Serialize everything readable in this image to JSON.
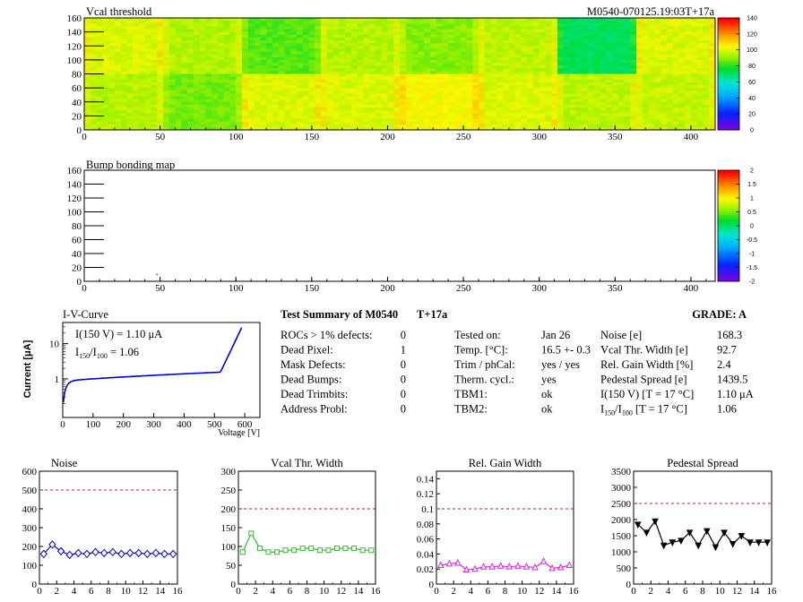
{
  "header": {
    "vcal_title": "Vcal threshold",
    "module_id": "M0540-070125.19:03T+17a",
    "bump_title": "Bump bonding map"
  },
  "vcal_map": {
    "x_range": [
      0,
      416
    ],
    "y_range": [
      0,
      160
    ],
    "x_ticks": [
      "0",
      "50",
      "100",
      "150",
      "200",
      "250",
      "300",
      "350",
      "400"
    ],
    "y_ticks": [
      "0",
      "20",
      "40",
      "60",
      "80",
      "100",
      "120",
      "140",
      "160"
    ],
    "z_range": [
      0,
      140
    ],
    "z_ticks": [
      "0",
      "20",
      "40",
      "60",
      "80",
      "100",
      "120",
      "140"
    ],
    "roc_blocks": [
      {
        "row": "top",
        "x0": 0,
        "x1": 52,
        "value": 100
      },
      {
        "row": "top",
        "x0": 52,
        "x1": 104,
        "value": 95
      },
      {
        "row": "top",
        "x0": 104,
        "x1": 156,
        "value": 85
      },
      {
        "row": "top",
        "x0": 156,
        "x1": 208,
        "value": 95
      },
      {
        "row": "top",
        "x0": 208,
        "x1": 260,
        "value": 90
      },
      {
        "row": "top",
        "x0": 260,
        "x1": 312,
        "value": 96
      },
      {
        "row": "top",
        "x0": 312,
        "x1": 364,
        "value": 72
      },
      {
        "row": "top",
        "x0": 364,
        "x1": 416,
        "value": 100
      },
      {
        "row": "bottom",
        "x0": 0,
        "x1": 52,
        "value": 95
      },
      {
        "row": "bottom",
        "x0": 52,
        "x1": 104,
        "value": 88
      },
      {
        "row": "bottom",
        "x0": 104,
        "x1": 156,
        "value": 100
      },
      {
        "row": "bottom",
        "x0": 156,
        "x1": 208,
        "value": 100
      },
      {
        "row": "bottom",
        "x0": 208,
        "x1": 260,
        "value": 104
      },
      {
        "row": "bottom",
        "x0": 260,
        "x1": 312,
        "value": 100
      },
      {
        "row": "bottom",
        "x0": 312,
        "x1": 364,
        "value": 96
      },
      {
        "row": "bottom",
        "x0": 364,
        "x1": 416,
        "value": 97
      }
    ]
  },
  "bump_map": {
    "x_range": [
      0,
      416
    ],
    "y_range": [
      0,
      160
    ],
    "x_ticks": [
      "0",
      "50",
      "100",
      "150",
      "200",
      "250",
      "300",
      "350",
      "400"
    ],
    "y_ticks": [
      "0",
      "20",
      "40",
      "60",
      "80",
      "100",
      "120",
      "140",
      "160"
    ],
    "z_range": [
      -2,
      2
    ],
    "z_ticks": [
      "-2",
      "-1.5",
      "-1",
      "-0.5",
      "0",
      "0.5",
      "1",
      "1.5",
      "2"
    ],
    "defect_pixels": [
      {
        "x": 48,
        "y": 10
      }
    ]
  },
  "iv": {
    "title": "I-V-Curve",
    "ylabel": "Current [μA]",
    "xlabel": "Voltage [V]",
    "x_ticks": [
      "0",
      "100",
      "200",
      "300",
      "400",
      "500",
      "600"
    ],
    "y_ticks": [
      "1",
      "10"
    ],
    "note1": "I(150 V) = 1.10 μA",
    "note2_a": "I",
    "note2_sub1": "150",
    "note2_b": "/I",
    "note2_sub2": "100",
    "note2_c": " =  1.06"
  },
  "summary": {
    "title": "Test Summary of M0540",
    "tag": "T+17a",
    "grade": "GRADE:  A",
    "rows_left": [
      {
        "label": "ROCs > 1% defects:",
        "value": "0"
      },
      {
        "label": "Dead Pixel:",
        "value": "1"
      },
      {
        "label": "Mask Defects:",
        "value": "0"
      },
      {
        "label": "Dead Bumps:",
        "value": "0"
      },
      {
        "label": "Dead Trimbits:",
        "value": "0"
      },
      {
        "label": "Address Probl:",
        "value": "0"
      }
    ],
    "rows_mid": [
      {
        "label": "Tested on:",
        "value": "Jan 26"
      },
      {
        "label": "Temp. [°C]:",
        "value": "16.5 +- 0.3"
      },
      {
        "label": "Trim / phCal:",
        "value": "yes / yes"
      },
      {
        "label": "Therm. cycl.:",
        "value": "yes"
      },
      {
        "label": "TBM1:",
        "value": "ok"
      },
      {
        "label": "TBM2:",
        "value": "ok"
      }
    ],
    "rows_right": [
      {
        "label": "Noise [e]",
        "value": "168.3"
      },
      {
        "label": "Vcal Thr. Width [e]",
        "value": "92.7"
      },
      {
        "label": "Rel. Gain Width [%]",
        "value": "2.4"
      },
      {
        "label": "Pedestal Spread [e]",
        "value": "1439.5"
      },
      {
        "label": "I(150 V) [T = 17 °C]",
        "value": "1.10 μA"
      },
      {
        "label": "I/I [T = 17 °C]",
        "value": "1.06"
      }
    ],
    "ratio_label": {
      "a": "I",
      "sub1": "150",
      "b": "/I",
      "sub2": "100",
      "c": "  [T = 17 °C]"
    }
  },
  "chart_data": [
    {
      "type": "line",
      "title": "Noise",
      "x_ticks": [
        "0",
        "2",
        "4",
        "6",
        "8",
        "10",
        "12",
        "14",
        "16"
      ],
      "y_ticks": [
        "0",
        "100",
        "200",
        "300",
        "400",
        "500",
        "600"
      ],
      "xlim": [
        0,
        16
      ],
      "ylim": [
        0,
        600
      ],
      "limit_line": 500,
      "color": "#0000cc",
      "marker": "diamond",
      "values": [
        160,
        210,
        175,
        155,
        165,
        160,
        170,
        165,
        170,
        160,
        165,
        165,
        160,
        165,
        160,
        160
      ]
    },
    {
      "type": "line",
      "title": "Vcal Thr. Width",
      "x_ticks": [
        "0",
        "2",
        "4",
        "6",
        "8",
        "10",
        "12",
        "14",
        "16"
      ],
      "y_ticks": [
        "0",
        "50",
        "100",
        "150",
        "200",
        "250",
        "300"
      ],
      "xlim": [
        0,
        16
      ],
      "ylim": [
        0,
        300
      ],
      "limit_line": 200,
      "color": "#33bb33",
      "marker": "square",
      "values": [
        85,
        135,
        95,
        85,
        85,
        90,
        90,
        95,
        95,
        90,
        90,
        95,
        95,
        95,
        90,
        90
      ]
    },
    {
      "type": "line",
      "title": "Rel. Gain Width",
      "x_ticks": [
        "0",
        "2",
        "4",
        "6",
        "8",
        "10",
        "12",
        "14",
        "16"
      ],
      "y_ticks": [
        "0",
        "0.02",
        "0.04",
        "0.06",
        "0.08",
        "0.1",
        "0.12",
        "0.14"
      ],
      "xlim": [
        0,
        16
      ],
      "ylim": [
        0,
        0.15
      ],
      "limit_line": 0.1,
      "color": "#dd22dd",
      "marker": "triangle",
      "values": [
        0.025,
        0.027,
        0.028,
        0.019,
        0.02,
        0.023,
        0.023,
        0.024,
        0.023,
        0.024,
        0.023,
        0.022,
        0.03,
        0.021,
        0.022,
        0.025
      ]
    },
    {
      "type": "line",
      "title": "Pedestal Spread",
      "x_ticks": [
        "0",
        "2",
        "4",
        "6",
        "8",
        "10",
        "12",
        "14",
        "16"
      ],
      "y_ticks": [
        "0",
        "500",
        "1000",
        "1500",
        "2000",
        "2500",
        "3000",
        "3500"
      ],
      "xlim": [
        0,
        16
      ],
      "ylim": [
        0,
        3500
      ],
      "limit_line": 2500,
      "color": "#000000",
      "marker": "triangle-down",
      "values": [
        1850,
        1600,
        1950,
        1200,
        1300,
        1350,
        1600,
        1200,
        1650,
        1150,
        1600,
        1250,
        1500,
        1300,
        1300,
        1300
      ]
    }
  ]
}
